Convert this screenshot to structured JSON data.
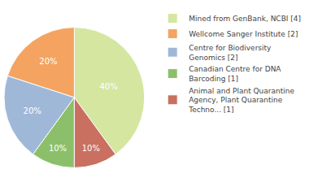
{
  "chart_data": {
    "type": "pie",
    "categories": [
      "Mined from GenBank, NCBI [4]",
      "Wellcome Sanger Institute [2]",
      "Centre for Biodiversity\nGenomics [2]",
      "Canadian Centre for DNA\nBarcoding [1]",
      "Animal and Plant Quarantine\nAgency, Plant Quarantine\nTechno... [1]"
    ],
    "values": [
      40,
      20,
      20,
      10,
      10
    ],
    "value_labels": [
      "40%",
      "20%",
      "20%",
      "10%",
      "10%"
    ],
    "data_labels": true,
    "colors": [
      "#d4e6a0",
      "#f4a460",
      "#a0b8d8",
      "#8cbf6a",
      "#c97060"
    ],
    "legend": "right"
  }
}
